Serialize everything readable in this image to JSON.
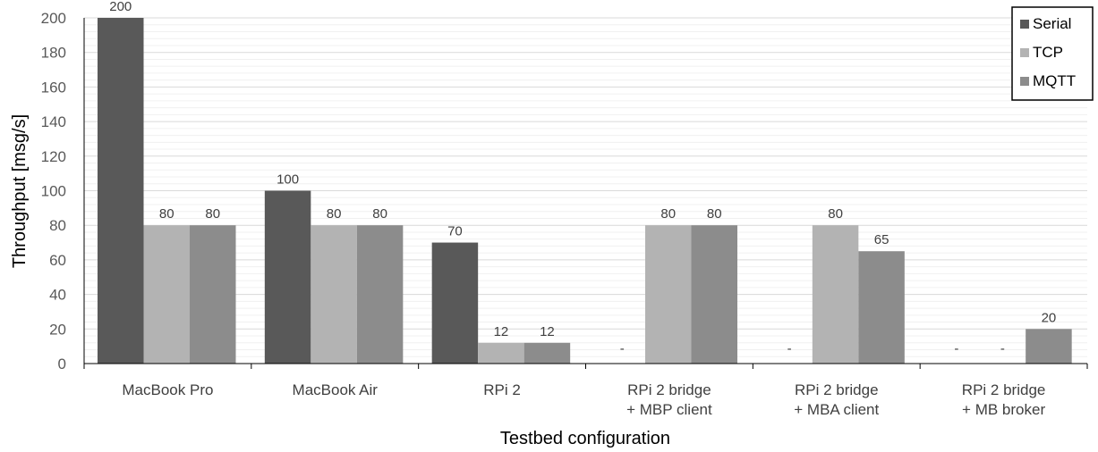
{
  "chart_data": {
    "type": "bar",
    "title": "",
    "xlabel": "Testbed configuration",
    "ylabel": "Throughput [msg/s]",
    "ylim": [
      0,
      200
    ],
    "yticks": [
      0,
      20,
      40,
      60,
      80,
      100,
      120,
      140,
      160,
      180,
      200
    ],
    "grid": true,
    "legend_position": "top-right",
    "categories": [
      [
        "MacBook Pro"
      ],
      [
        "MacBook Air"
      ],
      [
        "RPi 2"
      ],
      [
        "RPi 2 bridge",
        "+ MBP client"
      ],
      [
        "RPi 2 bridge",
        "+ MBA client"
      ],
      [
        "RPi 2 bridge",
        "+ MB broker"
      ]
    ],
    "series": [
      {
        "name": "Serial",
        "color": "#595959",
        "values": [
          200,
          100,
          70,
          null,
          null,
          null
        ],
        "labels": [
          "200",
          "100",
          "70",
          "-",
          "-",
          "-"
        ]
      },
      {
        "name": "TCP",
        "color": "#b3b3b3",
        "values": [
          80,
          80,
          12,
          80,
          80,
          null
        ],
        "labels": [
          "80",
          "80",
          "12",
          "80",
          "80",
          "-"
        ]
      },
      {
        "name": "MQTT",
        "color": "#8c8c8c",
        "values": [
          80,
          80,
          12,
          80,
          65,
          20
        ],
        "labels": [
          "80",
          "80",
          "12",
          "80",
          "65",
          "20"
        ]
      }
    ]
  }
}
